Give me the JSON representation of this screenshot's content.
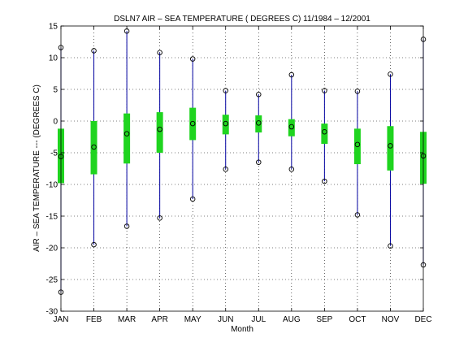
{
  "chart_data": {
    "type": "box",
    "title": "DSLN7  AIR – SEA TEMPERATURE ( DEGREES C) 11/1984 – 12/2001",
    "xlabel": "Month",
    "ylabel": "AIR – SEA TEMPERATURE  ---  (DEGREES C)",
    "ylim": [
      -30,
      15
    ],
    "yticks": [
      15,
      10,
      5,
      0,
      -5,
      -10,
      -15,
      -20,
      -25,
      -30
    ],
    "grid": true,
    "categories": [
      "JAN",
      "FEB",
      "MAR",
      "APR",
      "MAY",
      "JUN",
      "JUL",
      "AUG",
      "SEP",
      "OCT",
      "NOV",
      "DEC"
    ],
    "series": [
      {
        "max": [
          11.6,
          11.1,
          14.2,
          10.8,
          9.8,
          4.8,
          4.2,
          7.3,
          4.8,
          4.7,
          7.4,
          12.9
        ]
      },
      {
        "min": [
          -27.0,
          -19.5,
          -16.6,
          -15.3,
          -12.3,
          -7.6,
          -6.5,
          -7.6,
          -9.5,
          -14.8,
          -19.7,
          -22.7
        ]
      },
      {
        "median": [
          -5.6,
          -4.1,
          -2.0,
          -1.3,
          -0.4,
          -0.4,
          -0.3,
          -0.9,
          -1.7,
          -3.7,
          -3.9,
          -5.5
        ]
      },
      {
        "q1": [
          -9.8,
          -8.4,
          -6.7,
          -5.0,
          -3.0,
          -2.1,
          -1.8,
          -2.4,
          -3.6,
          -6.8,
          -7.8,
          -9.9
        ]
      },
      {
        "q3": [
          -1.2,
          0.0,
          1.2,
          1.4,
          2.1,
          1.0,
          0.9,
          0.3,
          -0.4,
          -1.2,
          -0.8,
          -1.7
        ]
      }
    ],
    "colors": {
      "whisker": "#0000a0",
      "box": "#1fd41f",
      "marker": "#000000",
      "axis": "#000000"
    }
  }
}
